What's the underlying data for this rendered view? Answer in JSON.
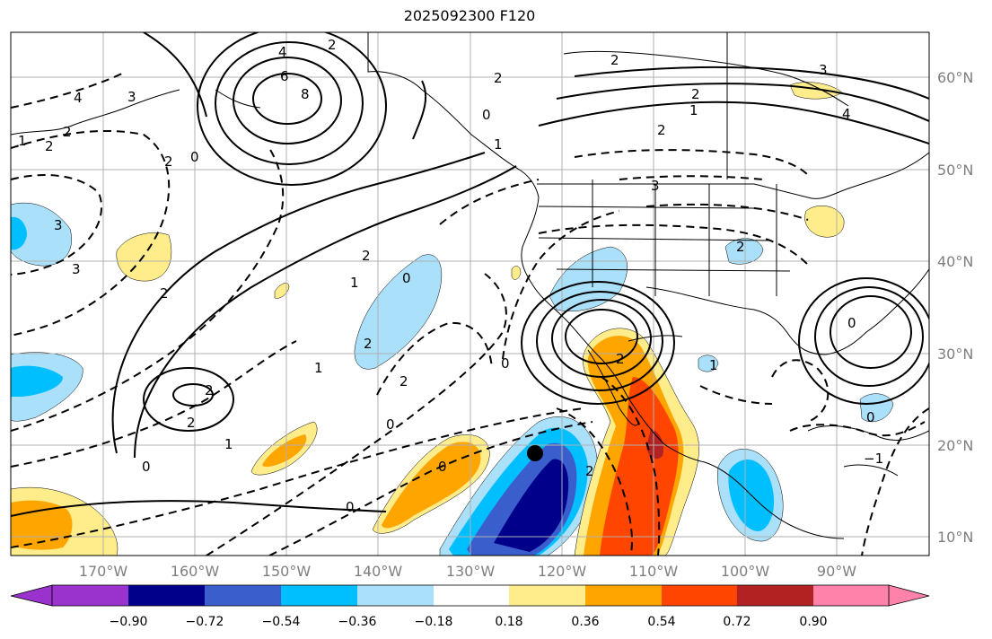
{
  "title": "2025092300 F120",
  "lat_labels": [
    "60°N",
    "50°N",
    "40°N",
    "30°N",
    "20°N",
    "10°N"
  ],
  "lon_labels": [
    "170°W",
    "160°W",
    "150°W",
    "140°W",
    "130°W",
    "120°W",
    "110°W",
    "100°W",
    "90°W"
  ],
  "colorbar": {
    "ticks": [
      "−0.90",
      "−0.72",
      "−0.54",
      "−0.36",
      "−0.18",
      "0.18",
      "0.36",
      "0.54",
      "0.72",
      "0.90"
    ],
    "colors": [
      "#9a32cd",
      "#00008b",
      "#3a5fcd",
      "#00bfff",
      "#aae0fa",
      "#ffffff",
      "#ffec8b",
      "#ffa500",
      "#ff4500",
      "#b22222",
      "#ff82ab"
    ]
  },
  "contour_labels": [
    "4",
    "2",
    "3",
    "0",
    "6",
    "8",
    "2",
    "2",
    "1",
    "0",
    "2",
    "3",
    "2",
    "4",
    "1",
    "2",
    "2",
    "1",
    "2",
    "0",
    "0",
    "2",
    "2",
    "3",
    "1",
    "2",
    "0",
    "0",
    "1",
    "2",
    "2",
    "0",
    "2",
    "3",
    "0",
    "0",
    "2",
    "1",
    "1",
    "0",
    "−1",
    "3",
    "4",
    "2",
    "2"
  ],
  "marker": "storm-center-dot"
}
